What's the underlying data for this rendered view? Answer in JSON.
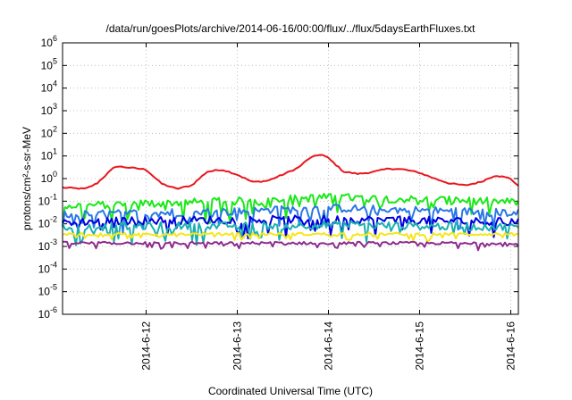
{
  "chart_data": {
    "type": "line",
    "title": "/data/run/goesPlots/archive/2014-06-16/00:00/flux/../flux/5daysEarthFluxes.txt",
    "xlabel": "Coordinated Universal Time (UTC)",
    "ylabel": "protons/cm²-s-sr-MeV",
    "x_range": [
      "2014-06-11 02:00",
      "2014-06-16 02:00"
    ],
    "x_ticks": [
      "2014-6-12",
      "2014-6-13",
      "2014-6-14",
      "2014-6-15",
      "2014-6-16"
    ],
    "y_scale": "log",
    "ylim": [
      1e-06,
      1000000.0
    ],
    "y_ticks": [
      {
        "base": "10",
        "exp": "-6"
      },
      {
        "base": "10",
        "exp": "-5"
      },
      {
        "base": "10",
        "exp": "-4"
      },
      {
        "base": "10",
        "exp": "-3"
      },
      {
        "base": "10",
        "exp": "-2"
      },
      {
        "base": "10",
        "exp": "-1"
      },
      {
        "base": "10",
        "exp": "0"
      },
      {
        "base": "10",
        "exp": "1"
      },
      {
        "base": "10",
        "exp": "2"
      },
      {
        "base": "10",
        "exp": "3"
      },
      {
        "base": "10",
        "exp": "4"
      },
      {
        "base": "10",
        "exp": "5"
      },
      {
        "base": "10",
        "exp": "6"
      }
    ],
    "grid": true,
    "series": [
      {
        "color": "#e8161e",
        "style": "smooth",
        "x": [
          "2014-06-11 02:00",
          "2014-06-11 08:00",
          "2014-06-11 11:00",
          "2014-06-11 14:00",
          "2014-06-11 16:00",
          "2014-06-11 20:00",
          "2014-06-12 00:00",
          "2014-06-12 04:00",
          "2014-06-12 08:00",
          "2014-06-12 12:00",
          "2014-06-12 16:00",
          "2014-06-12 20:00",
          "2014-06-13 00:00",
          "2014-06-13 04:00",
          "2014-06-13 08:00",
          "2014-06-13 12:00",
          "2014-06-13 16:00",
          "2014-06-13 19:00",
          "2014-06-13 22:00",
          "2014-06-14 00:00",
          "2014-06-14 04:00",
          "2014-06-14 08:00",
          "2014-06-14 12:00",
          "2014-06-14 16:00",
          "2014-06-14 20:00",
          "2014-06-15 00:00",
          "2014-06-15 04:00",
          "2014-06-15 08:00",
          "2014-06-15 12:00",
          "2014-06-15 16:00",
          "2014-06-15 20:00",
          "2014-06-16 00:00",
          "2014-06-16 02:00"
        ],
        "values": [
          0.4,
          0.35,
          0.6,
          1.8,
          3.5,
          3.0,
          2.5,
          0.6,
          0.35,
          0.5,
          2.0,
          2.5,
          1.5,
          0.7,
          0.8,
          1.5,
          3.0,
          8.0,
          12.0,
          8.0,
          2.0,
          1.6,
          2.0,
          2.8,
          2.5,
          1.8,
          1.0,
          0.6,
          0.5,
          0.7,
          1.4,
          1.0,
          0.45
        ]
      },
      {
        "color": "#19e919",
        "style": "noisy",
        "x": [
          "2014-06-11 02:00",
          "2014-06-12 00:00",
          "2014-06-13 00:00",
          "2014-06-14 00:00",
          "2014-06-15 00:00",
          "2014-06-16 02:00"
        ],
        "values": [
          0.06,
          0.08,
          0.1,
          0.15,
          0.12,
          0.09
        ]
      },
      {
        "color": "#2a78e6",
        "style": "noisy",
        "x": [
          "2014-06-11 02:00",
          "2014-06-12 00:00",
          "2014-06-13 00:00",
          "2014-06-14 00:00",
          "2014-06-15 00:00",
          "2014-06-16 02:00"
        ],
        "values": [
          0.025,
          0.03,
          0.035,
          0.05,
          0.04,
          0.03
        ]
      },
      {
        "color": "#0000e0",
        "style": "noisy",
        "x": [
          "2014-06-11 02:00",
          "2014-06-12 00:00",
          "2014-06-13 00:00",
          "2014-06-14 00:00",
          "2014-06-15 00:00",
          "2014-06-16 02:00"
        ],
        "values": [
          0.012,
          0.014,
          0.015,
          0.016,
          0.014,
          0.012
        ]
      },
      {
        "color": "#1ab0b0",
        "style": "noisy",
        "x": [
          "2014-06-11 02:00",
          "2014-06-12 00:00",
          "2014-06-13 00:00",
          "2014-06-14 00:00",
          "2014-06-15 00:00",
          "2014-06-16 02:00"
        ],
        "values": [
          0.007,
          0.008,
          0.008,
          0.009,
          0.008,
          0.007
        ]
      },
      {
        "color": "#f5e61a",
        "style": "noisy",
        "x": [
          "2014-06-11 02:00",
          "2014-06-12 00:00",
          "2014-06-13 00:00",
          "2014-06-14 00:00",
          "2014-06-15 00:00",
          "2014-06-16 02:00"
        ],
        "values": [
          0.0035,
          0.0035,
          0.0035,
          0.0035,
          0.0035,
          0.0035
        ]
      },
      {
        "color": "#8e2b8e",
        "style": "noisy",
        "x": [
          "2014-06-11 02:00",
          "2014-06-12 00:00",
          "2014-06-13 00:00",
          "2014-06-14 00:00",
          "2014-06-15 00:00",
          "2014-06-16 02:00"
        ],
        "values": [
          0.0014,
          0.0014,
          0.0014,
          0.0014,
          0.0014,
          0.0014
        ]
      }
    ]
  }
}
